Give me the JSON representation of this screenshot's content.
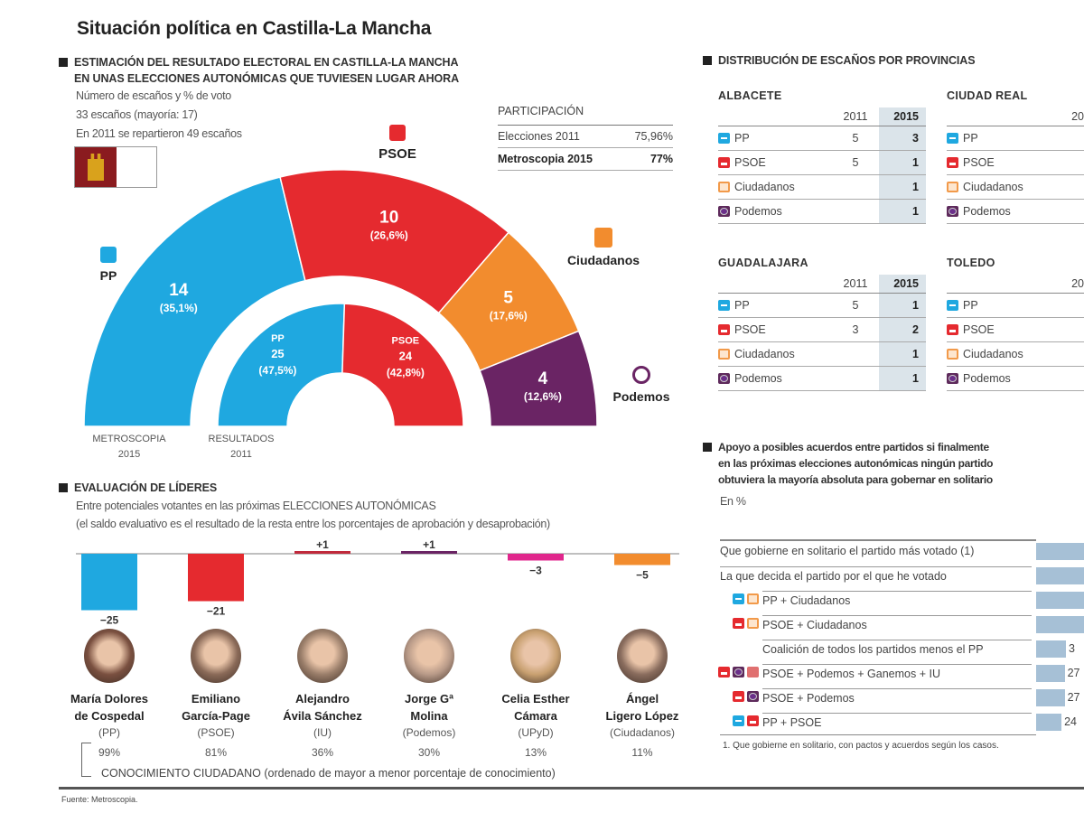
{
  "title": "Situación política en Castilla-La Mancha",
  "estimate": {
    "heading_line1": "ESTIMACIÓN DEL RESULTADO ELECTORAL EN CASTILLA-LA MANCHA",
    "heading_line2": "EN UNAS ELECCIONES AUTONÓMICAS QUE TUVIESEN LUGAR AHORA",
    "notes": [
      "Número de escaños y % de voto",
      "33 escaños (mayoría: 17)",
      "En 2011 se repartieron 49 escaños"
    ],
    "participation": {
      "title": "PARTICIPACIÓN",
      "rows": [
        {
          "label": "Elecciones 2011",
          "value": "75,96%"
        },
        {
          "label": "Metroscopia 2015",
          "value": "77%"
        }
      ]
    },
    "party_labels": {
      "pp": "PP",
      "psoe": "PSOE",
      "cs": "Ciudadanos",
      "podemos": "Podemos"
    },
    "outer_label": [
      "METROSCOPIA",
      "2015"
    ],
    "inner_label": [
      "RESULTADOS",
      "2011"
    ]
  },
  "colors": {
    "pp": "#1fa8e0",
    "psoe": "#e52a2f",
    "cs": "#f28c2e",
    "podemos": "#6a2464",
    "iu": "#c02a3c",
    "upyd": "#e0268c",
    "support_bar": "#a6c0d6"
  },
  "chart_data": [
    {
      "type": "pie",
      "subtype": "semicircle-parliament",
      "series": [
        {
          "name": "METROSCOPIA 2015",
          "slices": [
            {
              "party": "PP",
              "seats": 14,
              "pct": "35,1%",
              "color": "#1fa8e0"
            },
            {
              "party": "PSOE",
              "seats": 10,
              "pct": "26,6%",
              "color": "#e52a2f"
            },
            {
              "party": "Ciudadanos",
              "seats": 5,
              "pct": "17,6%",
              "color": "#f28c2e"
            },
            {
              "party": "Podemos",
              "seats": 4,
              "pct": "12,6%",
              "color": "#6a2464"
            }
          ]
        },
        {
          "name": "RESULTADOS 2011",
          "slices": [
            {
              "party": "PP",
              "seats": 25,
              "pct": "47,5%",
              "color": "#1fa8e0"
            },
            {
              "party": "PSOE",
              "seats": 24,
              "pct": "42,8%",
              "color": "#e52a2f"
            }
          ]
        }
      ]
    },
    {
      "type": "bar",
      "title": "EVALUACIÓN DE LÍDERES",
      "subtitle_line1": "Entre potenciales votantes  en las próximas ELECCIONES AUTONÓMICAS",
      "subtitle_line2": "(el saldo evaluativo es el resultado de la resta entre los porcentajes de aprobación y desaprobación)",
      "categories": [
        "María Dolores de Cospedal",
        "Emiliano García-Page",
        "Alejandro Ávila Sánchez",
        "Jorge Gª Molina",
        "Celia Esther Cámara",
        "Ángel Ligero López"
      ],
      "values": [
        -25,
        -21,
        1,
        1,
        -3,
        -5
      ],
      "value_labels": [
        "−25",
        "−21",
        "+1",
        "+1",
        "−3",
        "−5"
      ],
      "colors": [
        "#1fa8e0",
        "#e52a2f",
        "#c02a3c",
        "#6a2464",
        "#e0268c",
        "#f28c2e"
      ]
    },
    {
      "type": "bar",
      "orientation": "horizontal",
      "title_lines": [
        "Apoyo a posibles acuerdos entre partidos si finalmente",
        "en las próximas elecciones autonómicas ningún partido",
        "obtuviera la mayoría absoluta para gobernar en solitario"
      ],
      "unit": "En %",
      "categories": [
        "Que gobierne en solitario el partido más votado (1)",
        "La que decida el partido por el que he votado",
        "PP + Ciudadanos",
        "PSOE + Ciudadanos",
        "Coalición de todos los partidos menos el PP",
        "PSOE + Podemos + Ganemos + IU",
        "PSOE + Podemos",
        "PP + PSOE"
      ],
      "icons": [
        [],
        [],
        [
          "pp",
          "cs"
        ],
        [
          "psoe",
          "cs"
        ],
        [],
        [
          "psoe",
          "pod",
          "gan"
        ],
        [
          "psoe",
          "pod"
        ],
        [
          "pp",
          "psoe"
        ]
      ],
      "values": [
        null,
        null,
        null,
        null,
        null,
        27,
        27,
        24
      ],
      "value_labels": [
        "",
        "",
        "",
        "",
        "3",
        "27",
        "27",
        "24"
      ],
      "footnote": "1. Que gobierne en solitario, con pactos y acuerdos según los casos."
    }
  ],
  "leaders": [
    {
      "name1": "María Dolores",
      "name2": "de Cospedal",
      "party": "(PP)",
      "knowledge": "99%"
    },
    {
      "name1": "Emiliano",
      "name2": "García-Page",
      "party": "(PSOE)",
      "knowledge": "81%"
    },
    {
      "name1": "Alejandro",
      "name2": "Ávila Sánchez",
      "party": "(IU)",
      "knowledge": "36%"
    },
    {
      "name1": "Jorge Gª",
      "name2": "Molina",
      "party": "(Podemos)",
      "knowledge": "30%"
    },
    {
      "name1": "Celia Esther",
      "name2": "Cámara",
      "party": "(UPyD)",
      "knowledge": "13%"
    },
    {
      "name1": "Ángel",
      "name2": "Ligero López",
      "party": "(Ciudadanos)",
      "knowledge": "11%"
    }
  ],
  "knowledge_caption": "CONOCIMIENTO CIUDADANO (ordenado de mayor a menor porcentaje de conocimiento)",
  "provinces": {
    "heading": "DISTRIBUCIÓN DE ESCAÑOS POR PROVINCIAS",
    "tables": [
      {
        "name": "ALBACETE",
        "h2011": "2011",
        "h2015": "2015",
        "rows": [
          {
            "icon": "pp",
            "party": "PP",
            "v2011": "5",
            "v2015": "3"
          },
          {
            "icon": "psoe",
            "party": "PSOE",
            "v2011": "5",
            "v2015": "1"
          },
          {
            "icon": "cs",
            "party": "Ciudadanos",
            "v2011": "",
            "v2015": "1"
          },
          {
            "icon": "pod",
            "party": "Podemos",
            "v2011": "",
            "v2015": "1"
          }
        ]
      },
      {
        "name": "CIUDAD REAL",
        "h2011": "20",
        "h2015": "",
        "rows": [
          {
            "icon": "pp",
            "party": "PP",
            "v2011": "",
            "v2015": ""
          },
          {
            "icon": "psoe",
            "party": "PSOE",
            "v2011": "",
            "v2015": ""
          },
          {
            "icon": "cs",
            "party": "Ciudadanos",
            "v2011": "",
            "v2015": ""
          },
          {
            "icon": "pod",
            "party": "Podemos",
            "v2011": "",
            "v2015": ""
          }
        ]
      },
      {
        "name": "GUADALAJARA",
        "h2011": "2011",
        "h2015": "2015",
        "rows": [
          {
            "icon": "pp",
            "party": "PP",
            "v2011": "5",
            "v2015": "1"
          },
          {
            "icon": "psoe",
            "party": "PSOE",
            "v2011": "3",
            "v2015": "2"
          },
          {
            "icon": "cs",
            "party": "Ciudadanos",
            "v2011": "",
            "v2015": "1"
          },
          {
            "icon": "pod",
            "party": "Podemos",
            "v2011": "",
            "v2015": "1"
          }
        ]
      },
      {
        "name": "TOLEDO",
        "h2011": "20",
        "h2015": "",
        "rows": [
          {
            "icon": "pp",
            "party": "PP",
            "v2011": "",
            "v2015": ""
          },
          {
            "icon": "psoe",
            "party": "PSOE",
            "v2011": "",
            "v2015": ""
          },
          {
            "icon": "cs",
            "party": "Ciudadanos",
            "v2011": "",
            "v2015": ""
          },
          {
            "icon": "pod",
            "party": "Podemos",
            "v2011": "",
            "v2015": ""
          }
        ]
      }
    ]
  },
  "source": "Fuente: Metroscopia."
}
